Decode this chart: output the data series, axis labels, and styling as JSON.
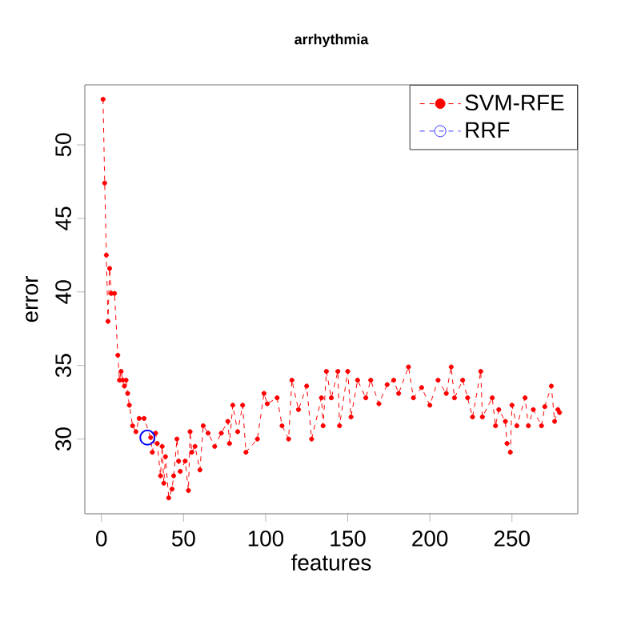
{
  "chart_data": {
    "type": "line",
    "title": "arrhythmia",
    "xlabel": "features",
    "ylabel": "error",
    "xlim": [
      -10.1,
      290.1
    ],
    "ylim": [
      24.92,
      54.08
    ],
    "xticks": [
      0,
      50,
      100,
      150,
      200,
      250
    ],
    "yticks": [
      30,
      35,
      40,
      45,
      50
    ],
    "grid": false,
    "legend": "top right",
    "marker": "circle",
    "line_style": "dashed",
    "series": [
      {
        "name": "SVM-RFE",
        "color": "#ff0000",
        "x": [
          1,
          2,
          3,
          4,
          5,
          6,
          8,
          10,
          11,
          12,
          13,
          14,
          15,
          16,
          17,
          19,
          21,
          23,
          26,
          30,
          31,
          33,
          34,
          36,
          37,
          38,
          39,
          41,
          43,
          44,
          46,
          47,
          48,
          51,
          53,
          54,
          55,
          57,
          60,
          62,
          65,
          69,
          73,
          77,
          78,
          80,
          83,
          86,
          88,
          95,
          99,
          101,
          107,
          110,
          114,
          116,
          120,
          125,
          128,
          134,
          135,
          137,
          140,
          144,
          145,
          150,
          152,
          156,
          161,
          164,
          169,
          174,
          178,
          181,
          187,
          190,
          195,
          200,
          205,
          210,
          213,
          215,
          220,
          223,
          226,
          231,
          232,
          238,
          240,
          242,
          246,
          247,
          249,
          250,
          253,
          258,
          260,
          263,
          268,
          270,
          274,
          276,
          278,
          279
        ],
        "values": [
          53.1,
          47.4,
          42.5,
          38.0,
          41.6,
          39.9,
          39.9,
          35.7,
          34.0,
          34.6,
          34.0,
          33.6,
          34.0,
          33.1,
          32.3,
          30.9,
          30.5,
          31.4,
          31.4,
          30.1,
          29.1,
          30.4,
          29.7,
          27.5,
          29.5,
          27.0,
          28.8,
          26.0,
          26.6,
          27.5,
          30.0,
          28.5,
          27.8,
          28.5,
          26.5,
          30.5,
          29.1,
          29.5,
          27.9,
          30.9,
          30.4,
          29.5,
          30.4,
          31.2,
          29.7,
          32.3,
          30.5,
          32.3,
          29.1,
          30.0,
          33.1,
          32.4,
          32.8,
          30.9,
          30.0,
          34.0,
          32.0,
          33.6,
          30.0,
          32.8,
          30.9,
          34.6,
          32.8,
          34.6,
          30.9,
          34.6,
          31.5,
          34.0,
          32.8,
          34.0,
          32.4,
          33.7,
          34.0,
          33.1,
          34.9,
          32.8,
          33.5,
          32.3,
          34.0,
          33.1,
          34.9,
          32.8,
          34.0,
          32.8,
          31.5,
          34.6,
          31.5,
          32.8,
          30.9,
          32.0,
          31.2,
          29.7,
          29.1,
          32.3,
          30.9,
          32.8,
          30.9,
          32.0,
          30.9,
          32.2,
          33.6,
          31.2,
          32.0,
          31.8
        ]
      },
      {
        "name": "RRF",
        "type": "scatter",
        "color": "#0000ff",
        "x": [
          28
        ],
        "values": [
          30.1
        ]
      }
    ]
  }
}
